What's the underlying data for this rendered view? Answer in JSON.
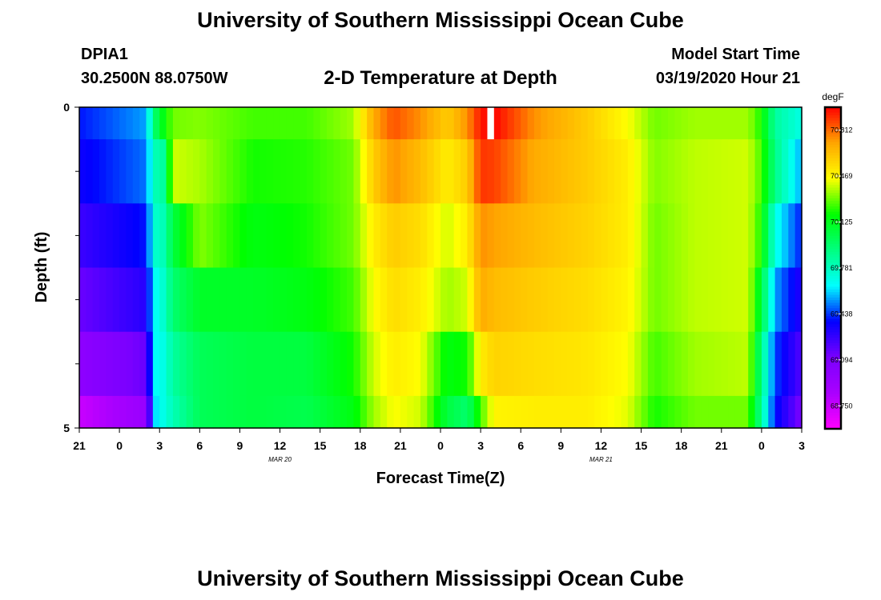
{
  "header": {
    "title": "University of Southern Mississippi Ocean Cube",
    "station_id": "DPIA1",
    "coordinates": "30.2500N 88.0750W",
    "subtitle": "2-D Temperature at Depth",
    "model_start_label": "Model Start Time",
    "model_start_value": "03/19/2020 Hour 21"
  },
  "footer": {
    "title": "University of Southern Mississippi Ocean Cube"
  },
  "chart_data": {
    "type": "heatmap",
    "title": "2-D Temperature at Depth",
    "xlabel": "Forecast Time(Z)",
    "ylabel": "Depth (ft)",
    "x_tick_labels": [
      "21",
      "0",
      "3",
      "6",
      "9",
      "12",
      "15",
      "18",
      "21",
      "0",
      "3",
      "6",
      "9",
      "12",
      "15",
      "18",
      "21",
      "0",
      "3"
    ],
    "x_hours_since_start": [
      0,
      3,
      6,
      9,
      12,
      15,
      18,
      21,
      24,
      27,
      30,
      33,
      36,
      39,
      42,
      45,
      48,
      51,
      54
    ],
    "x_range_hours": [
      0,
      54
    ],
    "date_labels": [
      {
        "text": "MAR 20",
        "hour": 15
      },
      {
        "text": "MAR 21",
        "hour": 39
      }
    ],
    "y_tick_labels": [
      "0",
      "5"
    ],
    "y_range": [
      0,
      5
    ],
    "y_minor_ticks": [
      1,
      2,
      3,
      4
    ],
    "depth_bin_edges": [
      0,
      0.5,
      1.5,
      2.5,
      3.5,
      4.5,
      5
    ],
    "colorbar": {
      "unit": "degF",
      "range": [
        68.578,
        70.984
      ],
      "tick_values": [
        68.75,
        69.094,
        69.438,
        69.781,
        70.125,
        70.469,
        70.812
      ],
      "tick_labels": [
        "68.750",
        "69.094",
        "69.438",
        "69.781",
        "70.125",
        "70.469",
        "70.812"
      ],
      "palette": [
        "#ff00ff",
        "#aa00ff",
        "#7a00ff",
        "#0000ff",
        "#00ffff",
        "#00ff7f",
        "#00ff00",
        "#ffff00",
        "#ffa500",
        "#ff0000"
      ]
    },
    "profiles": [
      {
        "hour": 0,
        "values": [
          69.4,
          69.35,
          69.25,
          69.15,
          69.0,
          68.75
        ]
      },
      {
        "hour": 5.0,
        "values": [
          69.55,
          69.5,
          69.4,
          69.3,
          69.15,
          68.95
        ]
      },
      {
        "hour": 5.6,
        "values": [
          69.95,
          69.8,
          69.75,
          69.65,
          69.65,
          69.6
        ]
      },
      {
        "hour": 6.3,
        "values": [
          70.15,
          69.85,
          69.8,
          69.75,
          69.7,
          69.7
        ]
      },
      {
        "hour": 7.0,
        "values": [
          70.3,
          70.4,
          70.05,
          69.95,
          69.85,
          69.8
        ]
      },
      {
        "hour": 9,
        "values": [
          70.32,
          70.36,
          70.32,
          70.1,
          70.0,
          70.0
        ]
      },
      {
        "hour": 13,
        "values": [
          70.25,
          70.2,
          70.15,
          70.1,
          70.05,
          70.05
        ]
      },
      {
        "hour": 17,
        "values": [
          70.25,
          70.22,
          70.2,
          70.15,
          70.05,
          70.02
        ]
      },
      {
        "hour": 20.5,
        "values": [
          70.35,
          70.3,
          70.3,
          70.25,
          70.2,
          70.15
        ]
      },
      {
        "hour": 22,
        "values": [
          70.7,
          70.6,
          70.5,
          70.45,
          70.4,
          70.35
        ]
      },
      {
        "hour": 23.5,
        "values": [
          70.85,
          70.75,
          70.6,
          70.55,
          70.5,
          70.45
        ]
      },
      {
        "hour": 25.5,
        "values": [
          70.75,
          70.65,
          70.55,
          70.5,
          70.45,
          70.4
        ]
      },
      {
        "hour": 27.5,
        "values": [
          70.6,
          70.5,
          70.4,
          70.35,
          70.15,
          70.05
        ]
      },
      {
        "hour": 29,
        "values": [
          70.75,
          70.6,
          70.5,
          70.4,
          70.2,
          69.95
        ]
      },
      {
        "hour": 30,
        "values": [
          70.95,
          70.9,
          70.75,
          70.7,
          70.5,
          70.25
        ]
      },
      {
        "hour": 31,
        "values": [
          70.98,
          70.88,
          70.72,
          70.65,
          70.58,
          70.48
        ]
      },
      {
        "hour": 34,
        "values": [
          70.75,
          70.7,
          70.65,
          70.6,
          70.55,
          70.5
        ]
      },
      {
        "hour": 38,
        "values": [
          70.6,
          70.6,
          70.58,
          70.55,
          70.52,
          70.5
        ]
      },
      {
        "hour": 41,
        "values": [
          70.45,
          70.5,
          70.5,
          70.48,
          70.45,
          70.42
        ]
      },
      {
        "hour": 43,
        "values": [
          70.3,
          70.32,
          70.3,
          70.3,
          70.25,
          70.2
        ]
      },
      {
        "hour": 46,
        "values": [
          70.35,
          70.38,
          70.38,
          70.38,
          70.35,
          70.3
        ]
      },
      {
        "hour": 50,
        "values": [
          70.35,
          70.4,
          70.4,
          70.4,
          70.38,
          70.3
        ]
      },
      {
        "hour": 51,
        "values": [
          70.2,
          70.25,
          70.2,
          70.05,
          69.9,
          69.85
        ]
      },
      {
        "hour": 52,
        "values": [
          69.85,
          69.9,
          69.7,
          69.55,
          69.45,
          69.4
        ]
      },
      {
        "hour": 54,
        "values": [
          69.7,
          69.55,
          69.4,
          69.3,
          69.2,
          69.1
        ]
      }
    ],
    "missing_cells": [
      {
        "hour_start": 30.5,
        "hour_end": 31.0,
        "depth_start": 0,
        "depth_end": 0.5
      }
    ]
  }
}
